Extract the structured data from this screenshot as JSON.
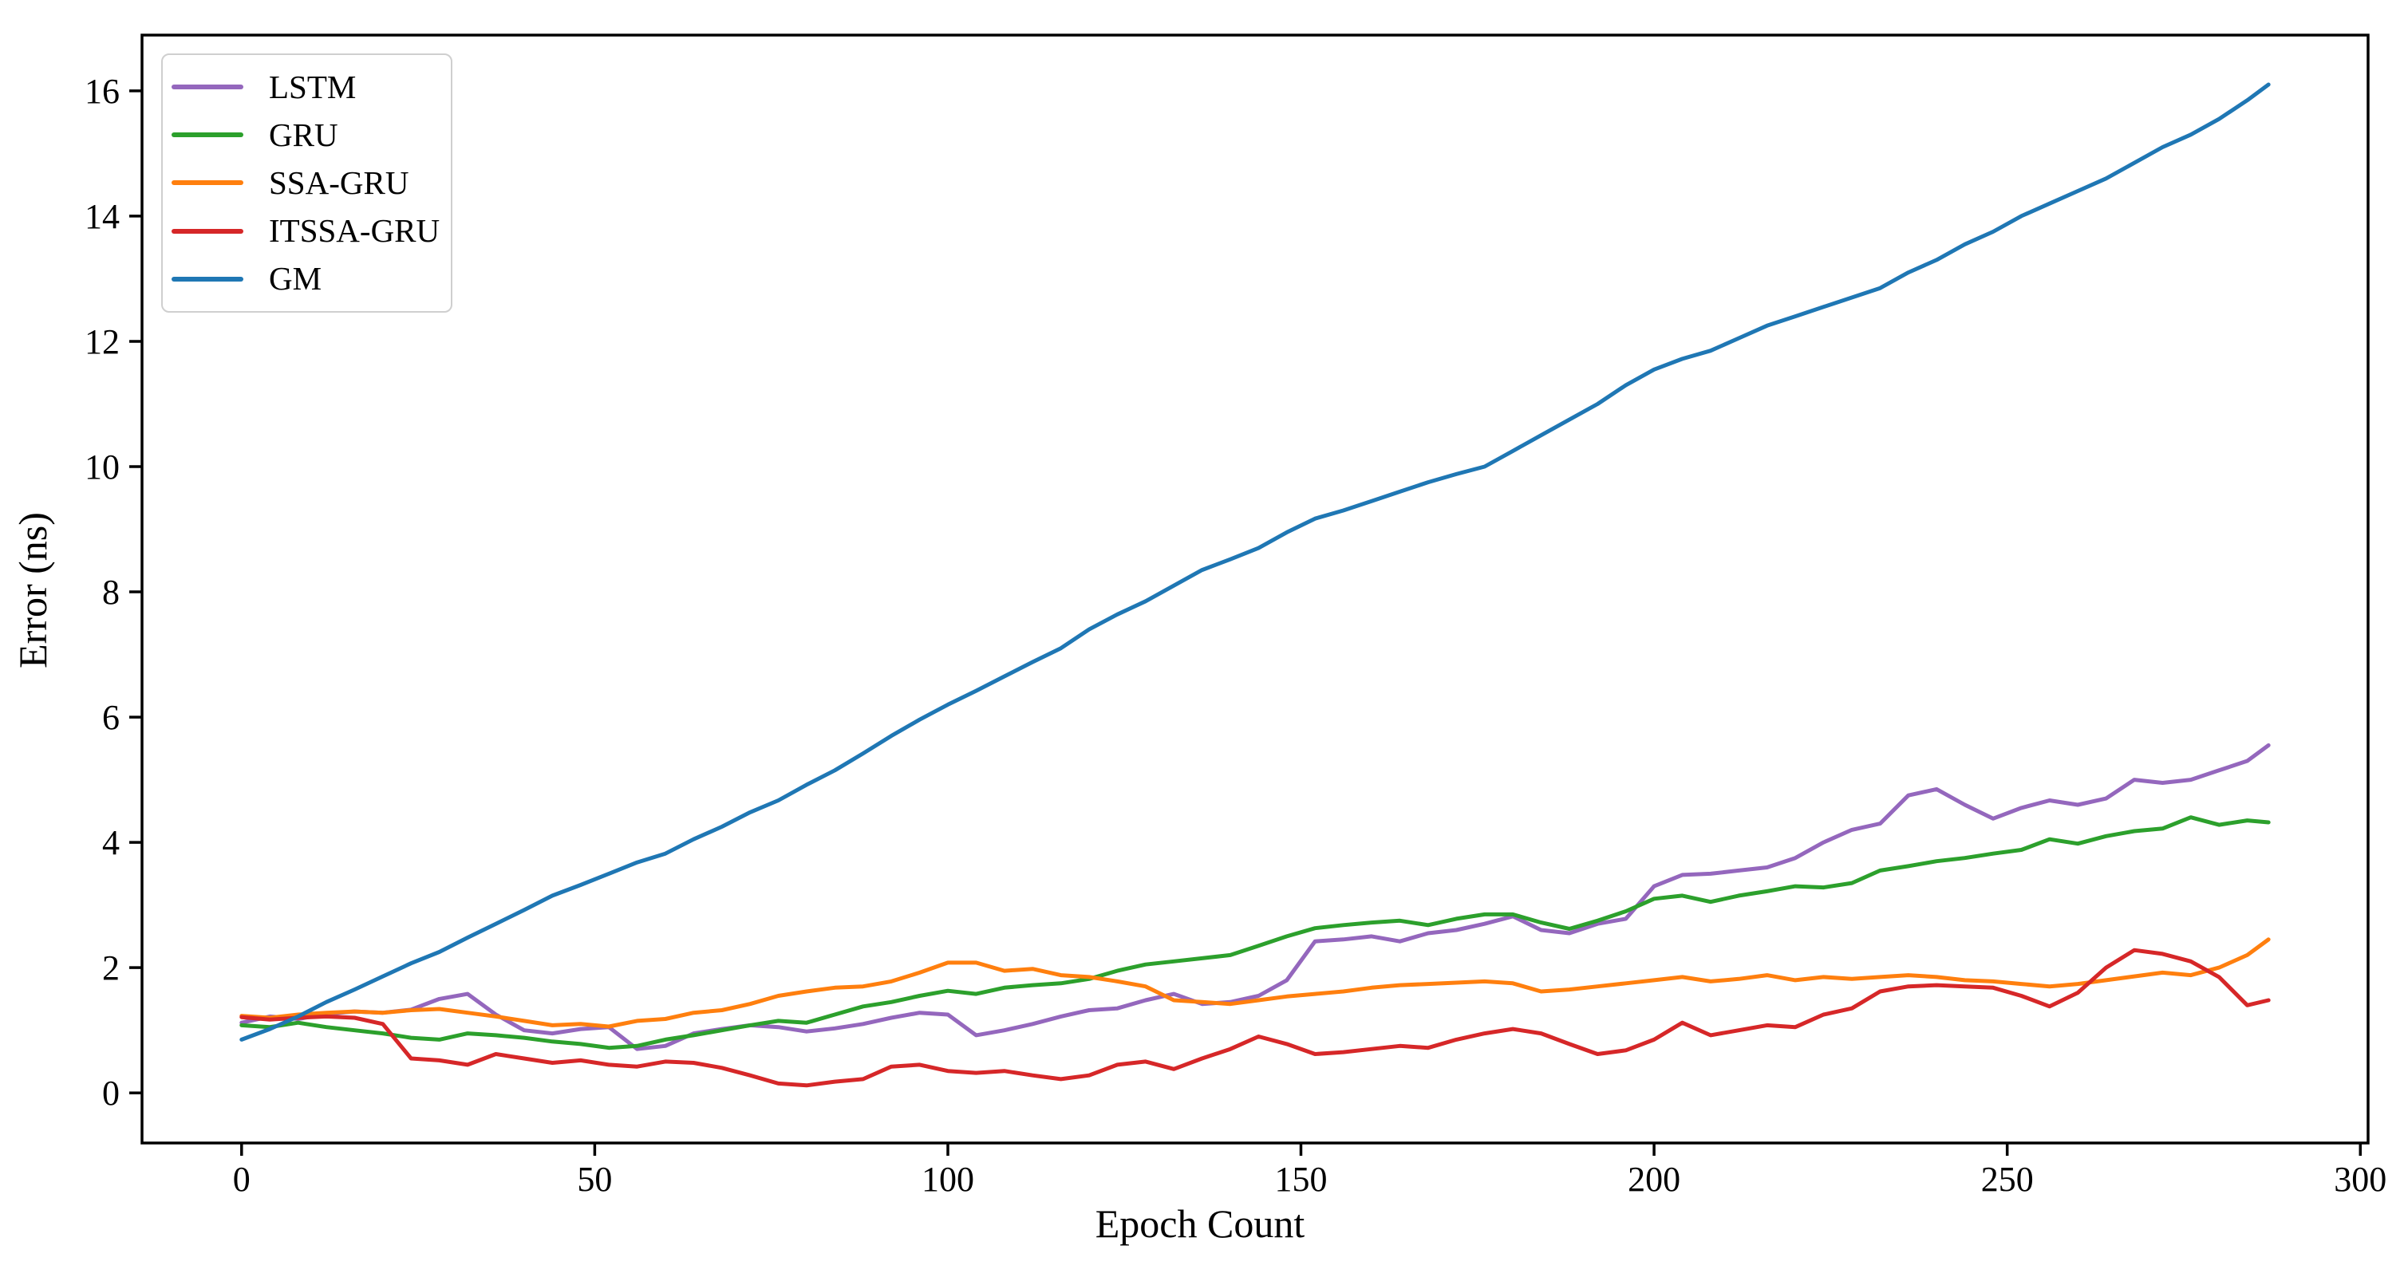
{
  "figure": {
    "background": "#ffffff",
    "text_color": "#000000",
    "spine_color": "#000000"
  },
  "chart_data": {
    "type": "line",
    "title": "",
    "xlabel": "Epoch Count",
    "ylabel": "Error (ns)",
    "xlim": [
      -14.1,
      301.1
    ],
    "ylim": [
      -0.8,
      16.89
    ],
    "x_ticks": [
      0,
      50,
      100,
      150,
      200,
      250,
      300
    ],
    "y_ticks": [
      0,
      2,
      4,
      6,
      8,
      10,
      12,
      14,
      16
    ],
    "grid": false,
    "legend_position": "upper left",
    "x": [
      0,
      4,
      8,
      12,
      16,
      20,
      24,
      28,
      32,
      36,
      40,
      44,
      48,
      52,
      56,
      60,
      64,
      68,
      72,
      76,
      80,
      84,
      88,
      92,
      96,
      100,
      104,
      108,
      112,
      116,
      120,
      124,
      128,
      132,
      136,
      140,
      144,
      148,
      152,
      156,
      160,
      164,
      168,
      172,
      176,
      180,
      184,
      188,
      192,
      196,
      200,
      204,
      208,
      212,
      216,
      220,
      224,
      228,
      232,
      236,
      240,
      244,
      248,
      252,
      256,
      260,
      264,
      268,
      272,
      276,
      280,
      284,
      287
    ],
    "series": [
      {
        "name": "LSTM",
        "color": "#9467bd",
        "values": [
          1.12,
          1.22,
          1.18,
          1.26,
          1.3,
          1.28,
          1.33,
          1.5,
          1.58,
          1.25,
          1.0,
          0.95,
          1.02,
          1.05,
          0.7,
          0.75,
          0.95,
          1.02,
          1.08,
          1.05,
          0.98,
          1.03,
          1.1,
          1.2,
          1.28,
          1.25,
          0.92,
          1.0,
          1.1,
          1.22,
          1.32,
          1.35,
          1.48,
          1.58,
          1.42,
          1.45,
          1.55,
          1.8,
          2.42,
          2.45,
          2.5,
          2.42,
          2.55,
          2.6,
          2.7,
          2.82,
          2.6,
          2.55,
          2.7,
          2.78,
          3.3,
          3.48,
          3.5,
          3.55,
          3.6,
          3.75,
          4.0,
          4.2,
          4.3,
          4.75,
          4.85,
          4.6,
          4.38,
          4.55,
          4.67,
          4.6,
          4.7,
          5.0,
          4.95,
          5.0,
          5.15,
          5.3,
          5.55
        ]
      },
      {
        "name": "GRU",
        "color": "#2ca02c",
        "values": [
          1.08,
          1.05,
          1.12,
          1.05,
          1.0,
          0.95,
          0.88,
          0.85,
          0.95,
          0.92,
          0.88,
          0.82,
          0.78,
          0.72,
          0.75,
          0.85,
          0.92,
          1.0,
          1.08,
          1.15,
          1.12,
          1.25,
          1.38,
          1.45,
          1.55,
          1.63,
          1.58,
          1.68,
          1.72,
          1.75,
          1.82,
          1.95,
          2.05,
          2.1,
          2.15,
          2.2,
          2.35,
          2.5,
          2.63,
          2.68,
          2.72,
          2.75,
          2.68,
          2.78,
          2.85,
          2.85,
          2.72,
          2.62,
          2.75,
          2.9,
          3.1,
          3.15,
          3.05,
          3.15,
          3.22,
          3.3,
          3.28,
          3.35,
          3.55,
          3.62,
          3.7,
          3.75,
          3.82,
          3.88,
          4.05,
          3.98,
          4.1,
          4.18,
          4.22,
          4.4,
          4.28,
          4.35,
          4.32
        ]
      },
      {
        "name": "SSA-GRU",
        "color": "#ff7f0e",
        "values": [
          1.23,
          1.2,
          1.25,
          1.28,
          1.3,
          1.28,
          1.32,
          1.34,
          1.28,
          1.22,
          1.15,
          1.08,
          1.1,
          1.06,
          1.15,
          1.18,
          1.28,
          1.32,
          1.42,
          1.55,
          1.62,
          1.68,
          1.7,
          1.78,
          1.92,
          2.08,
          2.08,
          1.95,
          1.98,
          1.88,
          1.85,
          1.78,
          1.7,
          1.48,
          1.45,
          1.42,
          1.48,
          1.54,
          1.58,
          1.62,
          1.68,
          1.72,
          1.74,
          1.76,
          1.78,
          1.75,
          1.62,
          1.65,
          1.7,
          1.75,
          1.8,
          1.85,
          1.78,
          1.82,
          1.88,
          1.8,
          1.85,
          1.82,
          1.85,
          1.88,
          1.85,
          1.8,
          1.78,
          1.74,
          1.7,
          1.74,
          1.8,
          1.86,
          1.92,
          1.88,
          2.0,
          2.2,
          2.45
        ]
      },
      {
        "name": "ITSSA-GRU",
        "color": "#d62728",
        "values": [
          1.21,
          1.17,
          1.2,
          1.22,
          1.2,
          1.1,
          0.55,
          0.52,
          0.45,
          0.62,
          0.55,
          0.48,
          0.52,
          0.45,
          0.42,
          0.5,
          0.48,
          0.4,
          0.28,
          0.15,
          0.12,
          0.18,
          0.22,
          0.42,
          0.45,
          0.35,
          0.32,
          0.35,
          0.28,
          0.22,
          0.28,
          0.45,
          0.5,
          0.38,
          0.55,
          0.7,
          0.9,
          0.78,
          0.62,
          0.65,
          0.7,
          0.75,
          0.72,
          0.85,
          0.95,
          1.02,
          0.95,
          0.78,
          0.62,
          0.68,
          0.85,
          1.12,
          0.92,
          1.0,
          1.08,
          1.05,
          1.25,
          1.35,
          1.62,
          1.7,
          1.72,
          1.7,
          1.68,
          1.55,
          1.38,
          1.6,
          2.0,
          2.28,
          2.22,
          2.1,
          1.85,
          1.4,
          1.48
        ]
      },
      {
        "name": "GM",
        "color": "#1f77b4",
        "values": [
          0.85,
          1.02,
          1.22,
          1.45,
          1.65,
          1.86,
          2.07,
          2.25,
          2.48,
          2.7,
          2.92,
          3.15,
          3.32,
          3.5,
          3.68,
          3.82,
          4.05,
          4.25,
          4.48,
          4.67,
          4.92,
          5.15,
          5.42,
          5.7,
          5.96,
          6.2,
          6.42,
          6.65,
          6.88,
          7.1,
          7.4,
          7.64,
          7.85,
          8.1,
          8.35,
          8.52,
          8.7,
          8.95,
          9.17,
          9.3,
          9.45,
          9.6,
          9.75,
          9.88,
          10.0,
          10.25,
          10.5,
          10.75,
          11.0,
          11.3,
          11.55,
          11.72,
          11.85,
          12.05,
          12.25,
          12.4,
          12.55,
          12.7,
          12.85,
          13.1,
          13.3,
          13.55,
          13.75,
          14.0,
          14.2,
          14.4,
          14.6,
          14.85,
          15.1,
          15.3,
          15.55,
          15.85,
          16.1
        ]
      }
    ]
  }
}
